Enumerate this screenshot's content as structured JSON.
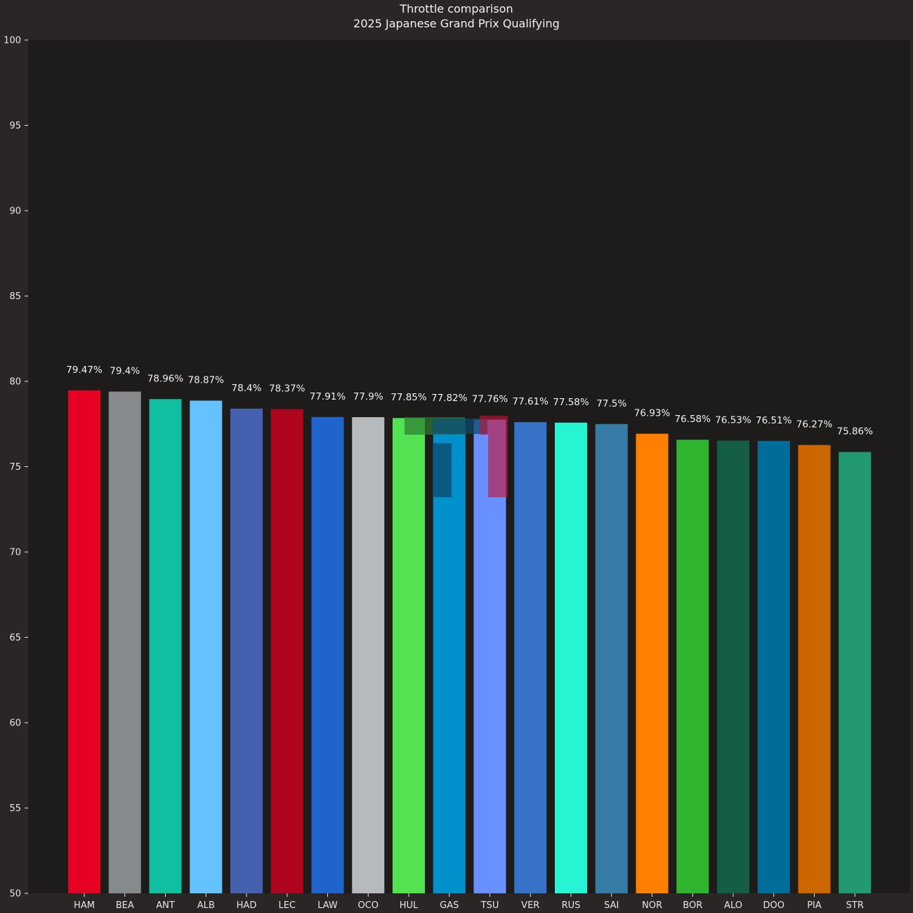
{
  "chart_data": {
    "type": "bar",
    "title": "Throttle comparison",
    "subtitle": "2025 Japanese Grand Prix Qualifying",
    "xlabel": "",
    "ylabel": "",
    "ylim": [
      50,
      100
    ],
    "yticks": [
      "50",
      "55",
      "60",
      "65",
      "70",
      "75",
      "80",
      "85",
      "90",
      "95",
      "100"
    ],
    "grid": false,
    "categories": [
      "HAM",
      "BEA",
      "ANT",
      "ALB",
      "HAD",
      "LEC",
      "LAW",
      "OCO",
      "HUL",
      "GAS",
      "TSU",
      "VER",
      "RUS",
      "SAI",
      "NOR",
      "BOR",
      "ALO",
      "DOO",
      "PIA",
      "STR"
    ],
    "values": [
      79.47,
      79.4,
      78.96,
      78.87,
      78.4,
      78.37,
      77.91,
      77.9,
      77.85,
      77.82,
      77.76,
      77.61,
      77.58,
      77.5,
      76.93,
      76.58,
      76.53,
      76.51,
      76.27,
      75.86
    ],
    "value_labels": [
      "79.47%",
      "79.4%",
      "78.96%",
      "78.87%",
      "78.4%",
      "78.37%",
      "77.91%",
      "77.9%",
      "77.85%",
      "77.82%",
      "77.76%",
      "77.61%",
      "77.58%",
      "77.5%",
      "76.93%",
      "76.58%",
      "76.53%",
      "76.51%",
      "76.27%",
      "75.86%"
    ],
    "bar_colors": [
      "#e60022",
      "#868a8d",
      "#10bfa0",
      "#64c3ff",
      "#4461af",
      "#b0051e",
      "#1f63cc",
      "#b6babd",
      "#52e252",
      "#0091cc",
      "#6890ff",
      "#3672c8",
      "#27f4d2",
      "#377ca6",
      "#ff8000",
      "#30b531",
      "#155e46",
      "#006d99",
      "#cc6700",
      "#229971"
    ]
  },
  "colors": {
    "background": "#292625",
    "plot_background": "#1e1c1b",
    "text": "#f2f2f2",
    "tick": "#e6e6e6"
  },
  "watermark": {
    "icon": "f1-logo-watermark",
    "colors": [
      "#2e7d32",
      "#0d4a6b",
      "#c8102e"
    ]
  }
}
